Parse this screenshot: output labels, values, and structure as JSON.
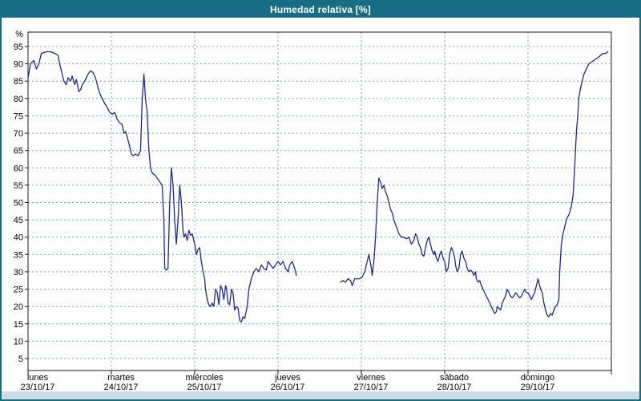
{
  "window": {
    "title": "Humedad relativa [%]"
  },
  "colors": {
    "header_bg": "#176e84",
    "border": "#176e84",
    "grid": "#74a2ac",
    "axis": "#1a1a1a",
    "line": "#1c2899",
    "footer_bg": "#ccdbe8",
    "plot_bg": "#ffffff"
  },
  "chart_data": {
    "type": "line",
    "title": "Humedad relativa [%]",
    "ylabel": "%",
    "grid": true,
    "legend": "none",
    "y_axis": {
      "min": 5,
      "max": 95,
      "step": 5,
      "unit": "%"
    },
    "x_axis": {
      "span_days": 7,
      "days": [
        {
          "name": "lunes",
          "date": "23/10/17"
        },
        {
          "name": "martes",
          "date": "24/10/17"
        },
        {
          "name": "miércoles",
          "date": "25/10/17"
        },
        {
          "name": "jueves",
          "date": "26/10/17"
        },
        {
          "name": "viernes",
          "date": "27/10/17"
        },
        {
          "name": "sábado",
          "date": "28/10/17"
        },
        {
          "name": "domingo",
          "date": "29/10/17"
        }
      ]
    },
    "series": [
      {
        "name": "Humedad relativa",
        "color": "#1c2899",
        "x_unit": "days_since_lunes_23_10_17",
        "points": [
          [
            0,
            86
          ],
          [
            0.03,
            90
          ],
          [
            0.07,
            91
          ],
          [
            0.1,
            88.5
          ],
          [
            0.13,
            90
          ],
          [
            0.16,
            93
          ],
          [
            0.22,
            93.5
          ],
          [
            0.27,
            93.5
          ],
          [
            0.32,
            93
          ],
          [
            0.36,
            92.5
          ],
          [
            0.38,
            90
          ],
          [
            0.41,
            87
          ],
          [
            0.43,
            85
          ],
          [
            0.46,
            84
          ],
          [
            0.48,
            86
          ],
          [
            0.51,
            85
          ],
          [
            0.53,
            86.5
          ],
          [
            0.56,
            84
          ],
          [
            0.58,
            85.5
          ],
          [
            0.61,
            82
          ],
          [
            0.63,
            82.5
          ],
          [
            0.65,
            84
          ],
          [
            0.68,
            85
          ],
          [
            0.72,
            87
          ],
          [
            0.75,
            88
          ],
          [
            0.78,
            87.5
          ],
          [
            0.81,
            86
          ],
          [
            0.84,
            83
          ],
          [
            0.87,
            81
          ],
          [
            0.89,
            80
          ],
          [
            0.92,
            78.5
          ],
          [
            0.95,
            77.5
          ],
          [
            0.98,
            76
          ],
          [
            1.01,
            75.5
          ],
          [
            1.04,
            76
          ],
          [
            1.07,
            74
          ],
          [
            1.1,
            73
          ],
          [
            1.13,
            72.5
          ],
          [
            1.15,
            70
          ],
          [
            1.17,
            70.5
          ],
          [
            1.2,
            68
          ],
          [
            1.22,
            66
          ],
          [
            1.24,
            64
          ],
          [
            1.26,
            63.5
          ],
          [
            1.29,
            64
          ],
          [
            1.32,
            63.5
          ],
          [
            1.35,
            65
          ],
          [
            1.37,
            80
          ],
          [
            1.39,
            87
          ],
          [
            1.41,
            80
          ],
          [
            1.43,
            76
          ],
          [
            1.45,
            65
          ],
          [
            1.47,
            60
          ],
          [
            1.49,
            58.5
          ],
          [
            1.52,
            58
          ],
          [
            1.55,
            57
          ],
          [
            1.58,
            56
          ],
          [
            1.61,
            55
          ],
          [
            1.63,
            45
          ],
          [
            1.64,
            31
          ],
          [
            1.66,
            30.5
          ],
          [
            1.68,
            31
          ],
          [
            1.7,
            50
          ],
          [
            1.72,
            60
          ],
          [
            1.74,
            55
          ],
          [
            1.76,
            45
          ],
          [
            1.78,
            38
          ],
          [
            1.8,
            45
          ],
          [
            1.82,
            55
          ],
          [
            1.84,
            50
          ],
          [
            1.86,
            42
          ],
          [
            1.87,
            40
          ],
          [
            1.89,
            41
          ],
          [
            1.91,
            39
          ],
          [
            1.93,
            42
          ],
          [
            1.95,
            40.5
          ],
          [
            1.97,
            41
          ],
          [
            2,
            38
          ],
          [
            2.02,
            35
          ],
          [
            2.04,
            36.5
          ],
          [
            2.06,
            37
          ],
          [
            2.08,
            33
          ],
          [
            2.1,
            30
          ],
          [
            2.12,
            28
          ],
          [
            2.13,
            25
          ],
          [
            2.15,
            22
          ],
          [
            2.17,
            20.5
          ],
          [
            2.19,
            20
          ],
          [
            2.21,
            21
          ],
          [
            2.23,
            20
          ],
          [
            2.25,
            25
          ],
          [
            2.27,
            24
          ],
          [
            2.29,
            20.5
          ],
          [
            2.31,
            26
          ],
          [
            2.33,
            25
          ],
          [
            2.35,
            22
          ],
          [
            2.37,
            26
          ],
          [
            2.38,
            25.5
          ],
          [
            2.4,
            21
          ],
          [
            2.42,
            20.5
          ],
          [
            2.44,
            25
          ],
          [
            2.46,
            24
          ],
          [
            2.48,
            19
          ],
          [
            2.5,
            20
          ],
          [
            2.52,
            19.5
          ],
          [
            2.54,
            16
          ],
          [
            2.56,
            15.5
          ],
          [
            2.58,
            17
          ],
          [
            2.6,
            16.5
          ],
          [
            2.63,
            20
          ],
          [
            2.65,
            25
          ],
          [
            2.68,
            28
          ],
          [
            2.71,
            30
          ],
          [
            2.74,
            31
          ],
          [
            2.77,
            30
          ],
          [
            2.8,
            32
          ],
          [
            2.83,
            31
          ],
          [
            2.86,
            30.5
          ],
          [
            2.88,
            33
          ],
          [
            2.91,
            32
          ],
          [
            2.94,
            31
          ],
          [
            2.97,
            32
          ],
          [
            3,
            33
          ],
          [
            3.03,
            32
          ],
          [
            3.06,
            33
          ],
          [
            3.09,
            31
          ],
          [
            3.12,
            30
          ],
          [
            3.14,
            32
          ],
          [
            3.17,
            33
          ],
          [
            3.2,
            31
          ],
          [
            3.22,
            29
          ],
          null,
          [
            3.75,
            27
          ],
          [
            3.78,
            27.5
          ],
          [
            3.81,
            27
          ],
          [
            3.84,
            28
          ],
          [
            3.87,
            27.5
          ],
          [
            3.89,
            26
          ],
          [
            3.92,
            28
          ],
          [
            3.95,
            28
          ],
          [
            3.98,
            28
          ],
          [
            4.01,
            28.5
          ],
          [
            4.04,
            30
          ],
          [
            4.07,
            33
          ],
          [
            4.09,
            35
          ],
          [
            4.12,
            31
          ],
          [
            4.13,
            29
          ],
          [
            4.15,
            33
          ],
          [
            4.17,
            40
          ],
          [
            4.19,
            50
          ],
          [
            4.21,
            57
          ],
          [
            4.23,
            56
          ],
          [
            4.25,
            54
          ],
          [
            4.27,
            55
          ],
          [
            4.29,
            53
          ],
          [
            4.31,
            52
          ],
          [
            4.33,
            50
          ],
          [
            4.35,
            48
          ],
          [
            4.37,
            47
          ],
          [
            4.39,
            45
          ],
          [
            4.42,
            43
          ],
          [
            4.45,
            41
          ],
          [
            4.48,
            40
          ],
          [
            4.51,
            40
          ],
          [
            4.54,
            39.5
          ],
          [
            4.57,
            40
          ],
          [
            4.6,
            38
          ],
          [
            4.63,
            39
          ],
          [
            4.65,
            41
          ],
          [
            4.67,
            40
          ],
          [
            4.69,
            38
          ],
          [
            4.71,
            37
          ],
          [
            4.73,
            35
          ],
          [
            4.75,
            34.5
          ],
          [
            4.77,
            37
          ],
          [
            4.79,
            39
          ],
          [
            4.81,
            40
          ],
          [
            4.83,
            38
          ],
          [
            4.85,
            36
          ],
          [
            4.87,
            35
          ],
          [
            4.88,
            36
          ],
          [
            4.9,
            34
          ],
          [
            4.92,
            33
          ],
          [
            4.94,
            35
          ],
          [
            4.96,
            36
          ],
          [
            4.98,
            34
          ],
          [
            5,
            33
          ],
          [
            5.02,
            30
          ],
          [
            5.04,
            31
          ],
          [
            5.06,
            35
          ],
          [
            5.08,
            37
          ],
          [
            5.1,
            36
          ],
          [
            5.12,
            34
          ],
          [
            5.13,
            32
          ],
          [
            5.15,
            30
          ],
          [
            5.17,
            31
          ],
          [
            5.19,
            35
          ],
          [
            5.21,
            36
          ],
          [
            5.23,
            34
          ],
          [
            5.25,
            33
          ],
          [
            5.27,
            31
          ],
          [
            5.29,
            30
          ],
          [
            5.31,
            30.5
          ],
          [
            5.33,
            30
          ],
          [
            5.35,
            29
          ],
          [
            5.37,
            30
          ],
          [
            5.38,
            28
          ],
          [
            5.4,
            27
          ],
          [
            5.42,
            27.5
          ],
          [
            5.44,
            26
          ],
          [
            5.46,
            25
          ],
          [
            5.48,
            24
          ],
          [
            5.5,
            23
          ],
          [
            5.52,
            22
          ],
          [
            5.54,
            21
          ],
          [
            5.56,
            20
          ],
          [
            5.58,
            19
          ],
          [
            5.6,
            18
          ],
          [
            5.62,
            18.5
          ],
          [
            5.63,
            20
          ],
          [
            5.65,
            19.5
          ],
          [
            5.67,
            19
          ],
          [
            5.69,
            21
          ],
          [
            5.71,
            22
          ],
          [
            5.73,
            23
          ],
          [
            5.75,
            25
          ],
          [
            5.77,
            24
          ],
          [
            5.79,
            23
          ],
          [
            5.81,
            22.5
          ],
          [
            5.83,
            23
          ],
          [
            5.85,
            24
          ],
          [
            5.87,
            23.5
          ],
          [
            5.88,
            23
          ],
          [
            5.9,
            22.5
          ],
          [
            5.92,
            23
          ],
          [
            5.94,
            24
          ],
          [
            5.96,
            25
          ],
          [
            5.98,
            24
          ],
          [
            6,
            24
          ],
          [
            6.02,
            23
          ],
          [
            6.04,
            22
          ],
          [
            6.06,
            23
          ],
          [
            6.08,
            24
          ],
          [
            6.1,
            26
          ],
          [
            6.12,
            28
          ],
          [
            6.13,
            27
          ],
          [
            6.15,
            25
          ],
          [
            6.17,
            24
          ],
          [
            6.19,
            21
          ],
          [
            6.21,
            19
          ],
          [
            6.23,
            17.5
          ],
          [
            6.25,
            17
          ],
          [
            6.27,
            18
          ],
          [
            6.29,
            17.5
          ],
          [
            6.31,
            19
          ],
          [
            6.33,
            20
          ],
          [
            6.35,
            20.5
          ],
          [
            6.37,
            22
          ],
          [
            6.38,
            30
          ],
          [
            6.4,
            38
          ],
          [
            6.42,
            41
          ],
          [
            6.44,
            43
          ],
          [
            6.46,
            45
          ],
          [
            6.48,
            46
          ],
          [
            6.5,
            47
          ],
          [
            6.52,
            49
          ],
          [
            6.54,
            52
          ],
          [
            6.56,
            60
          ],
          [
            6.58,
            70
          ],
          [
            6.6,
            76
          ],
          [
            6.61,
            80
          ],
          [
            6.63,
            83
          ],
          [
            6.65,
            85
          ],
          [
            6.67,
            87
          ],
          [
            6.69,
            88
          ],
          [
            6.71,
            89
          ],
          [
            6.73,
            90
          ],
          [
            6.76,
            90.5
          ],
          [
            6.79,
            91
          ],
          [
            6.82,
            91.5
          ],
          [
            6.85,
            92
          ],
          [
            6.87,
            92.5
          ],
          [
            6.9,
            93
          ],
          [
            6.93,
            93
          ],
          [
            6.96,
            93.5
          ]
        ]
      }
    ]
  }
}
